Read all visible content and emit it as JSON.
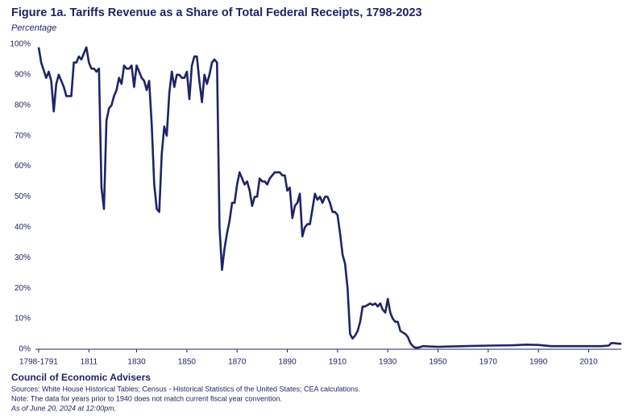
{
  "chart_data": {
    "type": "line",
    "title": "Figure 1a. Tariffs Revenue as a Share of Total Federal Receipts, 1798-2023",
    "subtitle": "Percentage",
    "source_org": "Council of Economic Advisers",
    "sources": "Sources: White House Historical Tables; Census - Historical Statistics of the United States; CEA calculations.",
    "note": "Note: The data for years prior to 1940 does not match current fiscal year convention.",
    "as_of": "As of June 20, 2024 at 12:00pm.",
    "xlim": [
      1791,
      2023
    ],
    "xticks": [
      {
        "value": 1791,
        "label": "1798-1791"
      },
      1811,
      1830,
      1850,
      1870,
      1890,
      1910,
      1930,
      1950,
      1970,
      1990,
      2010
    ],
    "ylim": [
      0,
      100
    ],
    "yticks": [
      {
        "value": 0,
        "label": "0%"
      },
      {
        "value": 10,
        "label": "10%"
      },
      {
        "value": 20,
        "label": "20%"
      },
      {
        "value": 30,
        "label": "30%"
      },
      {
        "value": 40,
        "label": "40%"
      },
      {
        "value": 50,
        "label": "50%"
      },
      {
        "value": 60,
        "label": "60%"
      },
      {
        "value": 70,
        "label": "70%"
      },
      {
        "value": 80,
        "label": "80%"
      },
      {
        "value": 90,
        "label": "90%"
      },
      {
        "value": 100,
        "label": "100%"
      }
    ],
    "grid": false,
    "x": [
      1791,
      1792,
      1794,
      1795,
      1796,
      1797,
      1798,
      1799,
      1801,
      1802,
      1804,
      1805,
      1806,
      1807,
      1808,
      1809,
      1810,
      1811,
      1812,
      1813,
      1814,
      1815,
      1816,
      1817,
      1818,
      1819,
      1820,
      1821,
      1822,
      1823,
      1824,
      1825,
      1826,
      1827,
      1828,
      1829,
      1830,
      1831,
      1832,
      1833,
      1834,
      1835,
      1836,
      1837,
      1838,
      1839,
      1840,
      1841,
      1842,
      1843,
      1844,
      1845,
      1846,
      1847,
      1848,
      1849,
      1850,
      1851,
      1852,
      1853,
      1854,
      1855,
      1856,
      1857,
      1858,
      1859,
      1860,
      1861,
      1862,
      1863,
      1864,
      1865,
      1866,
      1867,
      1868,
      1869,
      1870,
      1871,
      1872,
      1873,
      1874,
      1875,
      1876,
      1877,
      1878,
      1879,
      1880,
      1881,
      1882,
      1883,
      1884,
      1885,
      1886,
      1887,
      1888,
      1889,
      1890,
      1891,
      1892,
      1893,
      1894,
      1895,
      1896,
      1897,
      1898,
      1899,
      1900,
      1901,
      1902,
      1903,
      1904,
      1905,
      1906,
      1907,
      1908,
      1909,
      1910,
      1911,
      1912,
      1913,
      1914,
      1915,
      1916,
      1917,
      1918,
      1919,
      1920,
      1921,
      1922,
      1923,
      1924,
      1925,
      1926,
      1927,
      1928,
      1929,
      1930,
      1931,
      1932,
      1933,
      1934,
      1935,
      1936,
      1937,
      1938,
      1939,
      1940,
      1941,
      1942,
      1944,
      1950,
      1960,
      1970,
      1980,
      1985,
      1990,
      1995,
      2000,
      2010,
      2015,
      2018,
      2019,
      2020,
      2022,
      2023
    ],
    "series": [
      {
        "name": "Tariffs share",
        "color": "#1f2466",
        "values": [
          99,
          94,
          89,
          91,
          88,
          78,
          87,
          90,
          86,
          83,
          83,
          94,
          94,
          96,
          95,
          97,
          99,
          94,
          92,
          92,
          91,
          92,
          53,
          46,
          75,
          79,
          80,
          83,
          85,
          89,
          87,
          93,
          92,
          92,
          93,
          86,
          93,
          91,
          89,
          88,
          85,
          88,
          74,
          54,
          46,
          45,
          64,
          73,
          70,
          84,
          91,
          86,
          90,
          90,
          89,
          89,
          91,
          82,
          93,
          96,
          96,
          88,
          81,
          90,
          87,
          90,
          94,
          95,
          94,
          40,
          26,
          33,
          38,
          42,
          48,
          48,
          54,
          58,
          56,
          54,
          55,
          52,
          47,
          50,
          50,
          56,
          55,
          55,
          54,
          56,
          57,
          58,
          58,
          58,
          57,
          57,
          52,
          53,
          43,
          47,
          48,
          51,
          37,
          40,
          41,
          41,
          46,
          51,
          49,
          50,
          48,
          50,
          50,
          48,
          45,
          45,
          44,
          38,
          31,
          28,
          20,
          5,
          3.5,
          4.5,
          6,
          9,
          14,
          14,
          14.5,
          15,
          14.5,
          15,
          14,
          15,
          13,
          12,
          16.5,
          12,
          10,
          9,
          9,
          6,
          5.5,
          5,
          4,
          2,
          1,
          0.5,
          0.5,
          1,
          0.8,
          1,
          1.2,
          1.3,
          1.5,
          1.4,
          1,
          1,
          1,
          1,
          1.2,
          2,
          2,
          1.8,
          1.8
        ]
      }
    ]
  }
}
